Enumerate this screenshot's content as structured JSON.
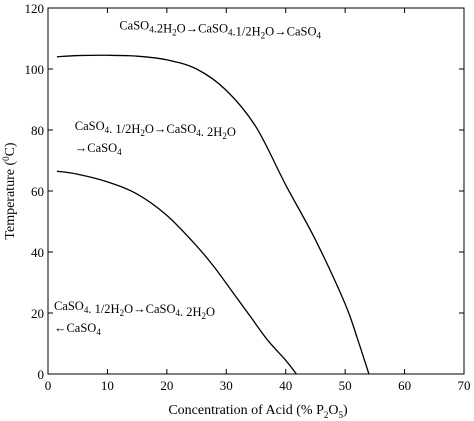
{
  "chart_data": {
    "type": "line",
    "title": "",
    "xlabel": "Concentration of Acid (% P",
    "xlabel_sub1": "2",
    "xlabel_mid": "O",
    "xlabel_sub2": "5",
    "xlabel_close": ")",
    "ylabel": "Temperature (",
    "ylabel_sup": "0",
    "ylabel_unit": "C)",
    "xlim": [
      0,
      70
    ],
    "ylim": [
      0,
      120
    ],
    "xticks": [
      "0",
      "10",
      "20",
      "30",
      "40",
      "50",
      "60",
      "70"
    ],
    "yticks": [
      "0",
      "20",
      "40",
      "60",
      "80",
      "100",
      "120"
    ],
    "grid": false,
    "series": [
      {
        "x": [
          1.5,
          5,
          10,
          15,
          20,
          25,
          30,
          35,
          40,
          45,
          50,
          52,
          54
        ],
        "y": [
          104,
          104.4,
          104.5,
          104.2,
          103,
          100,
          93,
          81,
          62,
          44,
          23,
          12,
          0
        ]
      },
      {
        "x": [
          1.5,
          5,
          10,
          15,
          20,
          25,
          28,
          31,
          34,
          37,
          40,
          41.8
        ],
        "y": [
          66.5,
          65.5,
          63,
          59,
          52,
          42,
          35,
          27,
          19,
          11,
          4.5,
          0
        ]
      }
    ],
    "annotations": [
      {
        "lines": [
          "CaSO4.2H2O→CaSO4.1/2H2O→CaSO4"
        ],
        "x": 12,
        "y": 113
      },
      {
        "lines": [
          "CaSO4. 1/2H2O→CaSO4. 2H2O",
          "→CaSO4"
        ],
        "x": 4.5,
        "y": 80
      },
      {
        "lines": [
          "CaSO4. 1/2H2O→CaSO4. 2H2O",
          "←CaSO4"
        ],
        "x": 1,
        "y": 21
      }
    ]
  }
}
